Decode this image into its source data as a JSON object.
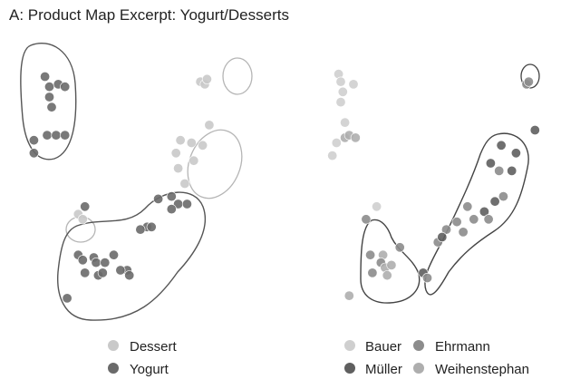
{
  "title": "A: Product Map Excerpt: Yogurt/Desserts",
  "colors": {
    "Dessert": "#c9c9c9",
    "Yogurt": "#6a6a6a",
    "Bauer": "#cfcfcf",
    "Ehrmann": "#8c8c8c",
    "Müller": "#5f5f5f",
    "Weihenstephan": "#aeaeae",
    "hull_Dessert": "#b5b5b5",
    "hull_Yogurt": "#555555"
  },
  "chart_data": [
    {
      "type": "scatter",
      "name": "left-panel",
      "color_by": "category",
      "legend": [
        "Dessert",
        "Yogurt"
      ],
      "legend_position": "bottom",
      "xlim": [
        0,
        10
      ],
      "ylim": [
        0,
        10
      ],
      "grid": false,
      "axes_visible": false,
      "points": [
        {
          "x": 0.8,
          "y": 9.2,
          "g": "Yogurt"
        },
        {
          "x": 1.0,
          "y": 8.8,
          "g": "Yogurt"
        },
        {
          "x": 1.4,
          "y": 8.9,
          "g": "Yogurt"
        },
        {
          "x": 1.7,
          "y": 8.8,
          "g": "Yogurt"
        },
        {
          "x": 1.0,
          "y": 8.4,
          "g": "Yogurt"
        },
        {
          "x": 1.1,
          "y": 8.0,
          "g": "Yogurt"
        },
        {
          "x": 0.9,
          "y": 6.9,
          "g": "Yogurt"
        },
        {
          "x": 1.3,
          "y": 6.9,
          "g": "Yogurt"
        },
        {
          "x": 1.7,
          "y": 6.9,
          "g": "Yogurt"
        },
        {
          "x": 0.3,
          "y": 6.7,
          "g": "Yogurt"
        },
        {
          "x": 0.3,
          "y": 6.2,
          "g": "Yogurt"
        },
        {
          "x": 7.8,
          "y": 9.0,
          "g": "Dessert"
        },
        {
          "x": 8.0,
          "y": 8.9,
          "g": "Dessert"
        },
        {
          "x": 8.1,
          "y": 9.1,
          "g": "Dessert"
        },
        {
          "x": 8.2,
          "y": 7.3,
          "g": "Dessert"
        },
        {
          "x": 6.9,
          "y": 6.7,
          "g": "Dessert"
        },
        {
          "x": 7.4,
          "y": 6.6,
          "g": "Dessert"
        },
        {
          "x": 6.7,
          "y": 6.2,
          "g": "Dessert"
        },
        {
          "x": 7.9,
          "y": 6.5,
          "g": "Dessert"
        },
        {
          "x": 7.5,
          "y": 5.9,
          "g": "Dessert"
        },
        {
          "x": 6.8,
          "y": 5.6,
          "g": "Dessert"
        },
        {
          "x": 7.1,
          "y": 5.0,
          "g": "Dessert"
        },
        {
          "x": 2.3,
          "y": 3.8,
          "g": "Dessert"
        },
        {
          "x": 2.5,
          "y": 3.6,
          "g": "Dessert"
        },
        {
          "x": 2.6,
          "y": 4.1,
          "g": "Yogurt"
        },
        {
          "x": 5.9,
          "y": 4.4,
          "g": "Yogurt"
        },
        {
          "x": 6.5,
          "y": 4.5,
          "g": "Yogurt"
        },
        {
          "x": 6.8,
          "y": 4.2,
          "g": "Yogurt"
        },
        {
          "x": 6.5,
          "y": 4.0,
          "g": "Yogurt"
        },
        {
          "x": 7.2,
          "y": 4.2,
          "g": "Yogurt"
        },
        {
          "x": 5.4,
          "y": 3.3,
          "g": "Yogurt"
        },
        {
          "x": 5.6,
          "y": 3.3,
          "g": "Yogurt"
        },
        {
          "x": 5.1,
          "y": 3.2,
          "g": "Yogurt"
        },
        {
          "x": 2.3,
          "y": 2.2,
          "g": "Yogurt"
        },
        {
          "x": 2.5,
          "y": 2.0,
          "g": "Yogurt"
        },
        {
          "x": 3.0,
          "y": 2.1,
          "g": "Yogurt"
        },
        {
          "x": 3.1,
          "y": 1.9,
          "g": "Yogurt"
        },
        {
          "x": 3.5,
          "y": 1.9,
          "g": "Yogurt"
        },
        {
          "x": 3.9,
          "y": 2.2,
          "g": "Yogurt"
        },
        {
          "x": 2.6,
          "y": 1.5,
          "g": "Yogurt"
        },
        {
          "x": 3.2,
          "y": 1.4,
          "g": "Yogurt"
        },
        {
          "x": 3.4,
          "y": 1.5,
          "g": "Yogurt"
        },
        {
          "x": 4.5,
          "y": 1.6,
          "g": "Yogurt"
        },
        {
          "x": 4.6,
          "y": 1.4,
          "g": "Yogurt"
        },
        {
          "x": 4.2,
          "y": 1.6,
          "g": "Yogurt"
        },
        {
          "x": 1.8,
          "y": 0.5,
          "g": "Yogurt"
        }
      ]
    },
    {
      "type": "scatter",
      "name": "right-panel",
      "color_by": "brand",
      "legend": [
        "Bauer",
        "Ehrmann",
        "Müller",
        "Weihenstephan"
      ],
      "legend_position": "bottom",
      "xlim": [
        0,
        10
      ],
      "ylim": [
        0,
        10
      ],
      "grid": false,
      "axes_visible": false,
      "points": [
        {
          "x": 0.5,
          "y": 9.3,
          "g": "Bauer"
        },
        {
          "x": 0.6,
          "y": 9.0,
          "g": "Bauer"
        },
        {
          "x": 0.7,
          "y": 8.6,
          "g": "Bauer"
        },
        {
          "x": 0.6,
          "y": 8.2,
          "g": "Bauer"
        },
        {
          "x": 1.2,
          "y": 8.9,
          "g": "Bauer"
        },
        {
          "x": 0.8,
          "y": 7.4,
          "g": "Bauer"
        },
        {
          "x": 0.8,
          "y": 6.8,
          "g": "Weihenstephan"
        },
        {
          "x": 1.0,
          "y": 6.9,
          "g": "Weihenstephan"
        },
        {
          "x": 1.3,
          "y": 6.8,
          "g": "Weihenstephan"
        },
        {
          "x": 0.4,
          "y": 6.6,
          "g": "Bauer"
        },
        {
          "x": 0.2,
          "y": 6.1,
          "g": "Bauer"
        },
        {
          "x": 9.4,
          "y": 8.9,
          "g": "Ehrmann"
        },
        {
          "x": 9.5,
          "y": 9.0,
          "g": "Ehrmann"
        },
        {
          "x": 9.8,
          "y": 7.1,
          "g": "Müller"
        },
        {
          "x": 8.2,
          "y": 6.5,
          "g": "Müller"
        },
        {
          "x": 8.9,
          "y": 6.2,
          "g": "Müller"
        },
        {
          "x": 7.7,
          "y": 5.8,
          "g": "Müller"
        },
        {
          "x": 8.1,
          "y": 5.5,
          "g": "Ehrmann"
        },
        {
          "x": 8.7,
          "y": 5.5,
          "g": "Müller"
        },
        {
          "x": 8.3,
          "y": 4.5,
          "g": "Ehrmann"
        },
        {
          "x": 7.9,
          "y": 4.3,
          "g": "Müller"
        },
        {
          "x": 7.4,
          "y": 3.9,
          "g": "Müller"
        },
        {
          "x": 7.6,
          "y": 3.6,
          "g": "Ehrmann"
        },
        {
          "x": 6.6,
          "y": 4.1,
          "g": "Ehrmann"
        },
        {
          "x": 6.9,
          "y": 3.6,
          "g": "Ehrmann"
        },
        {
          "x": 6.4,
          "y": 3.1,
          "g": "Ehrmann"
        },
        {
          "x": 6.1,
          "y": 3.5,
          "g": "Ehrmann"
        },
        {
          "x": 5.6,
          "y": 3.2,
          "g": "Ehrmann"
        },
        {
          "x": 5.2,
          "y": 2.7,
          "g": "Ehrmann"
        },
        {
          "x": 5.4,
          "y": 2.9,
          "g": "Müller"
        },
        {
          "x": 4.5,
          "y": 1.5,
          "g": "Müller"
        },
        {
          "x": 4.7,
          "y": 1.3,
          "g": "Ehrmann"
        },
        {
          "x": 2.3,
          "y": 4.1,
          "g": "Bauer"
        },
        {
          "x": 1.8,
          "y": 3.6,
          "g": "Ehrmann"
        },
        {
          "x": 2.0,
          "y": 2.2,
          "g": "Ehrmann"
        },
        {
          "x": 2.6,
          "y": 2.2,
          "g": "Weihenstephan"
        },
        {
          "x": 2.5,
          "y": 1.9,
          "g": "Ehrmann"
        },
        {
          "x": 2.7,
          "y": 1.7,
          "g": "Weihenstephan"
        },
        {
          "x": 2.1,
          "y": 1.5,
          "g": "Ehrmann"
        },
        {
          "x": 2.8,
          "y": 1.4,
          "g": "Weihenstephan"
        },
        {
          "x": 3.0,
          "y": 1.8,
          "g": "Weihenstephan"
        },
        {
          "x": 3.4,
          "y": 2.5,
          "g": "Ehrmann"
        },
        {
          "x": 1.0,
          "y": 0.6,
          "g": "Weihenstephan"
        }
      ]
    }
  ]
}
